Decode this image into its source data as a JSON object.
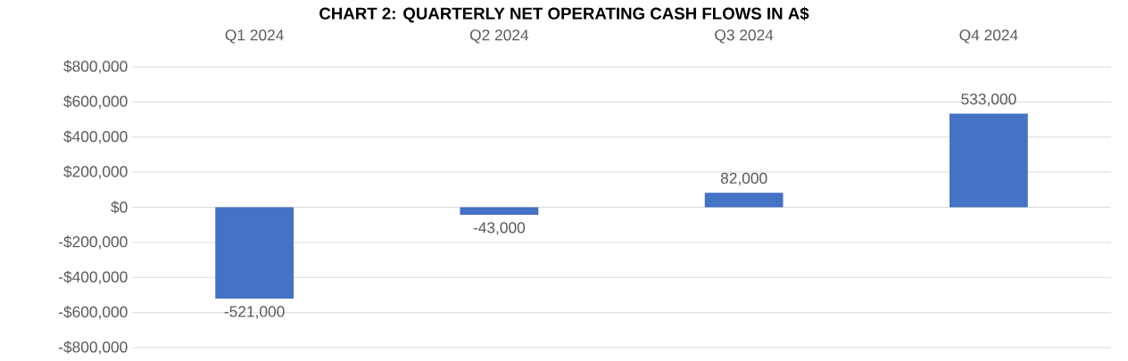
{
  "chart_data": {
    "type": "bar",
    "title": "CHART 2: QUARTERLY NET OPERATING CASH FLOWS IN A$",
    "categories": [
      "Q1 2024",
      "Q2 2024",
      "Q3 2024",
      "Q4 2024"
    ],
    "values": [
      -521000,
      -43000,
      82000,
      533000
    ],
    "value_labels": [
      "-521,000",
      "-43,000",
      "82,000",
      "533,000"
    ],
    "color": "#4472c4",
    "ylim": [
      -800000,
      800000
    ],
    "yticks": [
      {
        "value": -800000,
        "label": "-$800,000"
      },
      {
        "value": -600000,
        "label": "-$600,000"
      },
      {
        "value": -400000,
        "label": "-$400,000"
      },
      {
        "value": -200000,
        "label": "-$200,000"
      },
      {
        "value": 0,
        "label": "$0"
      },
      {
        "value": 200000,
        "label": "$200,000"
      },
      {
        "value": 400000,
        "label": "$400,000"
      },
      {
        "value": 600000,
        "label": "$600,000"
      },
      {
        "value": 800000,
        "label": "$800,000"
      }
    ],
    "grid": "y"
  }
}
